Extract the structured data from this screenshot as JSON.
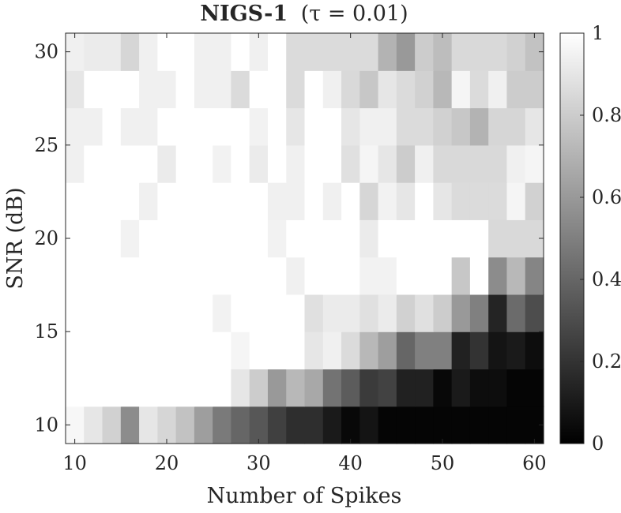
{
  "chart_data": {
    "type": "heatmap",
    "title": "NIGS-1",
    "title_param": "(τ = 0.01)",
    "xlabel": "Number of Spikes",
    "ylabel": "SNR (dB)",
    "x": [
      10,
      12,
      14,
      16,
      18,
      20,
      22,
      24,
      26,
      28,
      30,
      32,
      34,
      36,
      38,
      40,
      42,
      44,
      46,
      48,
      50,
      52,
      54,
      56,
      58,
      60
    ],
    "y": [
      10,
      12,
      14,
      16,
      18,
      20,
      22,
      24,
      26,
      28,
      30
    ],
    "xlim": [
      9,
      61
    ],
    "ylim": [
      9,
      31
    ],
    "xticks": [
      10,
      20,
      30,
      40,
      50,
      60
    ],
    "yticks": [
      10,
      15,
      20,
      25,
      30
    ],
    "colorbar": {
      "min": 0,
      "max": 1,
      "ticks": [
        0,
        0.2,
        0.4,
        0.6,
        0.8,
        1
      ],
      "colormap": "gray"
    },
    "z": [
      [
        0.97,
        0.9,
        0.82,
        0.55,
        0.9,
        0.84,
        0.76,
        0.62,
        0.48,
        0.4,
        0.34,
        0.25,
        0.18,
        0.18,
        0.1,
        0.03,
        0.08,
        0.02,
        0.02,
        0.02,
        0.02,
        0.02,
        0.02,
        0.02,
        0.02,
        0.02
      ],
      [
        1,
        1,
        1,
        1,
        1,
        1,
        1,
        1,
        1,
        0.9,
        0.8,
        0.6,
        0.72,
        0.66,
        0.45,
        0.36,
        0.23,
        0.26,
        0.13,
        0.13,
        0.03,
        0.1,
        0.05,
        0.05,
        0.02,
        0.02
      ],
      [
        1,
        1,
        1,
        1,
        1,
        1,
        1,
        1,
        1,
        0.96,
        1,
        1,
        1,
        0.9,
        0.94,
        0.86,
        0.72,
        0.62,
        0.4,
        0.5,
        0.5,
        0.13,
        0.2,
        0.08,
        0.1,
        0.05
      ],
      [
        1,
        1,
        1,
        1,
        1,
        1,
        1,
        1,
        0.95,
        1,
        1,
        1,
        1,
        0.88,
        0.92,
        0.92,
        0.88,
        0.92,
        0.82,
        0.88,
        0.8,
        0.6,
        0.5,
        0.14,
        0.42,
        0.3
      ],
      [
        1,
        1,
        1,
        1,
        1,
        1,
        1,
        1,
        1,
        1,
        1,
        1,
        0.94,
        1,
        1,
        1,
        0.95,
        0.95,
        1,
        1,
        1,
        0.78,
        1,
        0.55,
        0.72,
        0.52
      ],
      [
        1,
        1,
        1,
        0.95,
        1,
        1,
        1,
        1,
        1,
        1,
        1,
        0.95,
        1,
        1,
        1,
        1,
        0.92,
        1,
        1,
        1,
        1,
        1,
        1,
        0.85,
        0.85,
        0.85
      ],
      [
        1,
        1,
        1,
        1,
        0.94,
        1,
        1,
        1,
        1,
        1,
        1,
        0.94,
        0.94,
        1,
        0.94,
        1,
        0.84,
        0.95,
        0.9,
        1,
        0.9,
        0.86,
        0.86,
        0.86,
        0.96,
        0.82
      ],
      [
        0.94,
        1,
        1,
        1,
        1,
        0.92,
        1,
        1,
        0.95,
        1,
        0.92,
        1,
        0.94,
        1,
        1,
        0.88,
        0.96,
        0.9,
        0.8,
        0.94,
        0.85,
        0.85,
        0.85,
        0.85,
        0.94,
        0.96
      ],
      [
        0.94,
        0.94,
        1,
        0.94,
        0.94,
        1,
        1,
        1,
        1,
        1,
        0.95,
        1,
        0.9,
        1,
        1,
        0.9,
        0.94,
        0.94,
        0.86,
        0.86,
        0.82,
        0.78,
        0.7,
        0.84,
        0.84,
        0.9
      ],
      [
        0.9,
        1,
        1,
        1,
        0.94,
        0.94,
        1,
        0.94,
        0.94,
        0.86,
        1,
        1,
        0.86,
        1,
        0.94,
        0.85,
        0.78,
        0.9,
        0.86,
        0.82,
        0.72,
        0.96,
        0.86,
        0.94,
        0.8,
        0.8
      ],
      [
        0.94,
        0.92,
        0.92,
        0.84,
        0.94,
        1,
        1,
        0.94,
        0.94,
        1,
        0.94,
        1,
        0.86,
        0.86,
        0.86,
        0.86,
        0.86,
        0.7,
        0.6,
        0.8,
        0.74,
        0.85,
        0.85,
        0.85,
        0.82,
        0.76
      ]
    ]
  }
}
